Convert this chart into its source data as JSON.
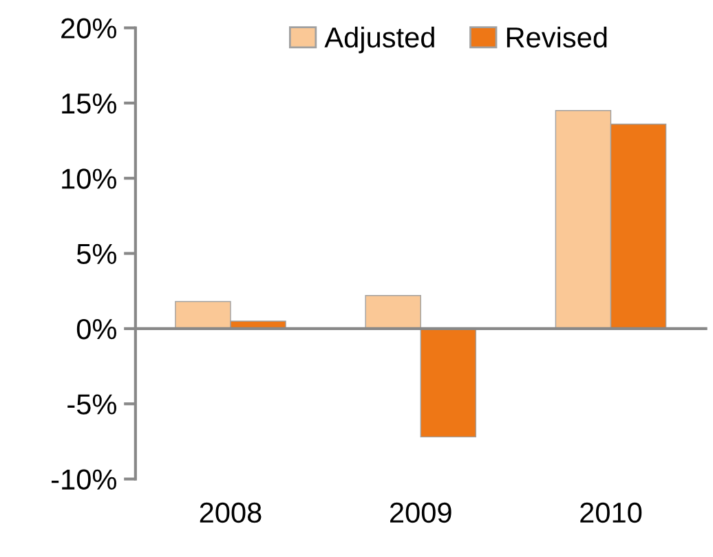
{
  "chart_data": {
    "type": "bar",
    "categories": [
      "2008",
      "2009",
      "2010"
    ],
    "series": [
      {
        "name": "Adjusted",
        "color": "#fac896",
        "values": [
          1.8,
          2.2,
          14.5
        ]
      },
      {
        "name": "Revised",
        "color": "#ee7716",
        "values": [
          0.5,
          -7.2,
          13.6
        ]
      }
    ],
    "ylim": [
      -10,
      20
    ],
    "yticks": [
      {
        "value": -10,
        "label": "-10%"
      },
      {
        "value": -5,
        "label": "-5%"
      },
      {
        "value": 0,
        "label": "0%"
      },
      {
        "value": 5,
        "label": "5%"
      },
      {
        "value": 10,
        "label": "10%"
      },
      {
        "value": 15,
        "label": "15%"
      },
      {
        "value": 20,
        "label": "20%"
      }
    ],
    "legend": "top"
  }
}
